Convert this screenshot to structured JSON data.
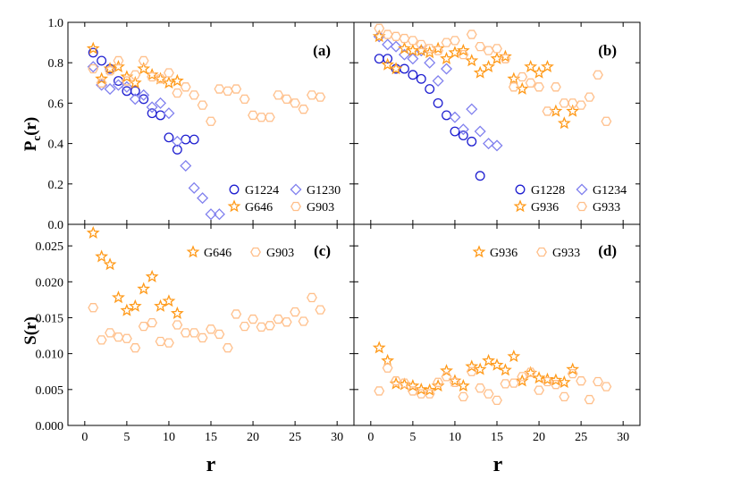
{
  "colors": {
    "blue": "#1f1fd0",
    "lightblue": "#8080ee",
    "orange": "#ff9a1a",
    "lightorange": "#ffbf8a"
  },
  "axis_labels": {
    "y_top_main": "P",
    "y_top_sub": "c",
    "y_top_suffix": "(r)",
    "y_bottom": "S(r)",
    "x": "r"
  },
  "chart_data": [
    {
      "panel": "(a)",
      "type": "scatter",
      "xlim": [
        -2,
        32
      ],
      "ylim": [
        0,
        1.0
      ],
      "xticks": [
        "0",
        "5",
        "10",
        "15",
        "20",
        "25",
        "30"
      ],
      "yticks": [
        "0.0",
        "0.2",
        "0.4",
        "0.6",
        "0.8",
        "1.0"
      ],
      "legend_placement": "bottom-right",
      "series": [
        {
          "name": "G1224",
          "marker": "circle",
          "color": "#1f1fd0",
          "x": [
            1,
            2,
            3,
            4,
            5,
            6,
            7,
            8,
            9,
            10,
            11,
            12,
            13
          ],
          "y": [
            0.85,
            0.81,
            0.77,
            0.71,
            0.66,
            0.66,
            0.62,
            0.55,
            0.54,
            0.43,
            0.37,
            0.42,
            0.42
          ]
        },
        {
          "name": "G1230",
          "marker": "diamond",
          "color": "#8080ee",
          "x": [
            1,
            2,
            3,
            4,
            5,
            6,
            7,
            8,
            9,
            10,
            11,
            12,
            13,
            14,
            15,
            16
          ],
          "y": [
            0.78,
            0.69,
            0.67,
            0.69,
            0.68,
            0.62,
            0.64,
            0.58,
            0.6,
            0.55,
            0.41,
            0.29,
            0.18,
            0.13,
            0.05,
            0.05
          ]
        },
        {
          "name": "G646",
          "marker": "star",
          "color": "#ff9a1a",
          "x": [
            1,
            2,
            3,
            4,
            5,
            6,
            7,
            8,
            9,
            10,
            11
          ],
          "y": [
            0.87,
            0.72,
            0.77,
            0.78,
            0.73,
            0.7,
            0.77,
            0.74,
            0.72,
            0.7,
            0.71
          ]
        },
        {
          "name": "G903",
          "marker": "hexagon",
          "color": "#ffbf8a",
          "x": [
            1,
            2,
            3,
            4,
            5,
            6,
            7,
            8,
            9,
            10,
            11,
            12,
            13,
            14,
            15,
            16,
            17,
            18,
            19,
            20,
            21,
            22,
            23,
            24,
            25,
            26,
            27,
            28
          ],
          "y": [
            0.77,
            0.7,
            0.76,
            0.81,
            0.71,
            0.74,
            0.81,
            0.73,
            0.72,
            0.75,
            0.65,
            0.68,
            0.64,
            0.59,
            0.51,
            0.67,
            0.66,
            0.67,
            0.62,
            0.54,
            0.53,
            0.53,
            0.64,
            0.62,
            0.6,
            0.57,
            0.64,
            0.63
          ]
        }
      ]
    },
    {
      "panel": "(b)",
      "type": "scatter",
      "xlim": [
        -2,
        32
      ],
      "ylim": [
        0,
        1.0
      ],
      "xticks": [
        "0",
        "5",
        "10",
        "15",
        "20",
        "25",
        "30"
      ],
      "legend_placement": "bottom-right",
      "series": [
        {
          "name": "G1228",
          "marker": "circle",
          "color": "#1f1fd0",
          "x": [
            1,
            2,
            3,
            4,
            5,
            6,
            7,
            8,
            9,
            10,
            11,
            12,
            13
          ],
          "y": [
            0.82,
            0.82,
            0.77,
            0.77,
            0.74,
            0.72,
            0.67,
            0.6,
            0.54,
            0.46,
            0.44,
            0.41,
            0.24
          ]
        },
        {
          "name": "G1234",
          "marker": "diamond",
          "color": "#8080ee",
          "x": [
            1,
            2,
            3,
            4,
            5,
            6,
            7,
            8,
            9,
            10,
            11,
            12,
            13,
            14,
            15
          ],
          "y": [
            0.93,
            0.89,
            0.88,
            0.84,
            0.82,
            0.86,
            0.8,
            0.71,
            0.77,
            0.53,
            0.47,
            0.57,
            0.46,
            0.4,
            0.39
          ]
        },
        {
          "name": "G936",
          "marker": "star",
          "color": "#ff9a1a",
          "x": [
            1,
            2,
            3,
            4,
            5,
            6,
            7,
            8,
            9,
            10,
            11,
            12,
            13,
            14,
            15,
            16,
            17,
            18,
            19,
            20,
            21,
            22,
            23,
            24
          ],
          "y": [
            0.93,
            0.79,
            0.77,
            0.87,
            0.86,
            0.86,
            0.85,
            0.87,
            0.82,
            0.85,
            0.86,
            0.81,
            0.75,
            0.78,
            0.82,
            0.83,
            0.72,
            0.67,
            0.78,
            0.75,
            0.78,
            0.56,
            0.5,
            0.56
          ]
        },
        {
          "name": "G933",
          "marker": "hexagon",
          "color": "#ffbf8a",
          "x": [
            1,
            2,
            3,
            4,
            5,
            6,
            7,
            8,
            9,
            10,
            11,
            12,
            13,
            14,
            15,
            16,
            17,
            18,
            19,
            20,
            21,
            22,
            23,
            24,
            25,
            26,
            27,
            28
          ],
          "y": [
            0.97,
            0.94,
            0.93,
            0.92,
            0.91,
            0.89,
            0.87,
            0.86,
            0.9,
            0.91,
            0.84,
            0.94,
            0.88,
            0.86,
            0.87,
            0.82,
            0.68,
            0.73,
            0.7,
            0.68,
            0.56,
            0.68,
            0.6,
            0.6,
            0.59,
            0.63,
            0.74,
            0.51
          ]
        }
      ]
    },
    {
      "panel": "(c)",
      "type": "scatter",
      "xlim": [
        -2,
        32
      ],
      "ylim": [
        0,
        0.028
      ],
      "xticks": [
        "0",
        "5",
        "10",
        "15",
        "20",
        "25",
        "30"
      ],
      "yticks": [
        "0.000",
        "0.005",
        "0.010",
        "0.015",
        "0.020",
        "0.025"
      ],
      "legend_placement": "top-right",
      "series": [
        {
          "name": "G646",
          "marker": "star",
          "color": "#ff9a1a",
          "x": [
            1,
            2,
            3,
            4,
            5,
            6,
            7,
            8,
            9,
            10,
            11
          ],
          "y": [
            0.0268,
            0.0235,
            0.0224,
            0.0178,
            0.016,
            0.0166,
            0.019,
            0.0207,
            0.0166,
            0.0173,
            0.0156
          ]
        },
        {
          "name": "G903",
          "marker": "hexagon",
          "color": "#ffbf8a",
          "x": [
            1,
            2,
            3,
            4,
            5,
            6,
            7,
            8,
            9,
            10,
            11,
            12,
            13,
            14,
            15,
            16,
            17,
            18,
            19,
            20,
            21,
            22,
            23,
            24,
            25,
            26,
            27,
            28
          ],
          "y": [
            0.0164,
            0.0119,
            0.0129,
            0.0123,
            0.0121,
            0.0108,
            0.0138,
            0.0143,
            0.0117,
            0.0115,
            0.014,
            0.0129,
            0.0129,
            0.0122,
            0.0134,
            0.0127,
            0.0108,
            0.0155,
            0.0138,
            0.0148,
            0.0137,
            0.0139,
            0.0148,
            0.0144,
            0.0158,
            0.0145,
            0.0178,
            0.0161
          ]
        }
      ]
    },
    {
      "panel": "(d)",
      "type": "scatter",
      "xlim": [
        -2,
        32
      ],
      "ylim": [
        0,
        0.028
      ],
      "xticks": [
        "0",
        "5",
        "10",
        "15",
        "20",
        "25",
        "30"
      ],
      "legend_placement": "top-right",
      "series": [
        {
          "name": "G936",
          "marker": "star",
          "color": "#ff9a1a",
          "x": [
            1,
            2,
            3,
            4,
            5,
            6,
            7,
            8,
            9,
            10,
            11,
            12,
            13,
            14,
            15,
            16,
            17,
            18,
            19,
            20,
            21,
            22,
            23,
            24
          ],
          "y": [
            0.0108,
            0.009,
            0.0058,
            0.0057,
            0.0055,
            0.005,
            0.0049,
            0.0055,
            0.0076,
            0.0062,
            0.0055,
            0.0082,
            0.0078,
            0.009,
            0.0084,
            0.0077,
            0.0096,
            0.0062,
            0.0073,
            0.0066,
            0.0064,
            0.0063,
            0.006,
            0.0078
          ]
        },
        {
          "name": "G933",
          "marker": "hexagon",
          "color": "#ffbf8a",
          "x": [
            1,
            2,
            3,
            4,
            5,
            6,
            7,
            8,
            9,
            10,
            11,
            12,
            13,
            14,
            15,
            16,
            17,
            18,
            19,
            20,
            21,
            22,
            23,
            24,
            25,
            26,
            27,
            28
          ],
          "y": [
            0.0048,
            0.008,
            0.0062,
            0.0059,
            0.0048,
            0.0044,
            0.0044,
            0.006,
            0.0068,
            0.006,
            0.004,
            0.0075,
            0.0052,
            0.0044,
            0.0035,
            0.0058,
            0.0059,
            0.0068,
            0.0074,
            0.0049,
            0.0061,
            0.0057,
            0.004,
            0.0072,
            0.0062,
            0.0036,
            0.0061,
            0.0054
          ]
        }
      ]
    }
  ]
}
